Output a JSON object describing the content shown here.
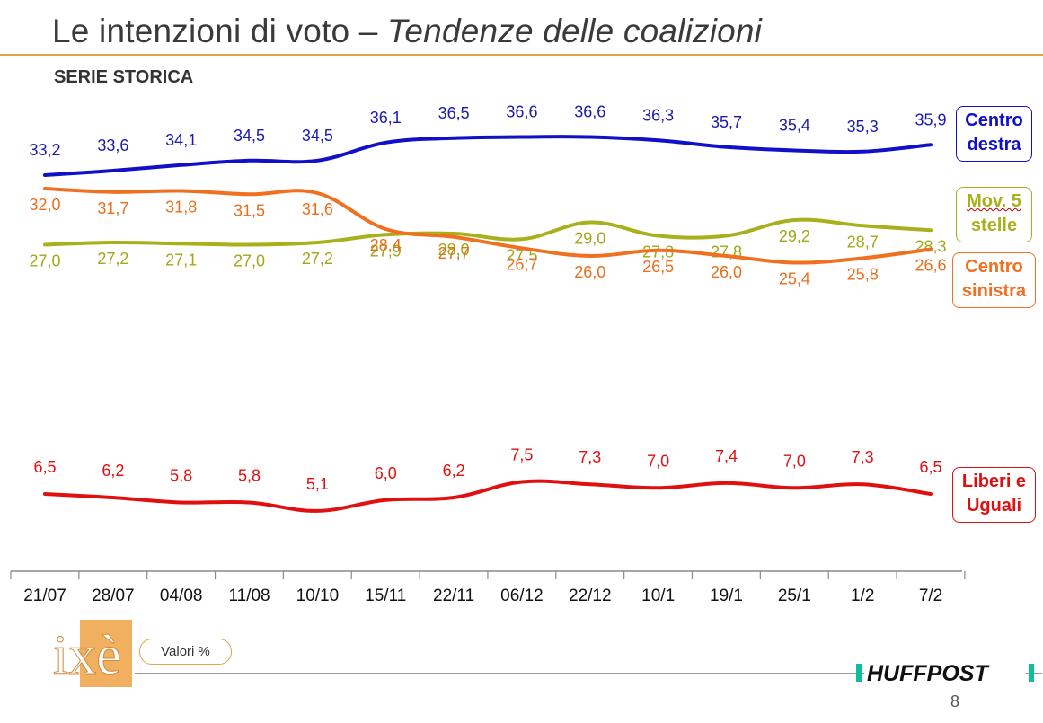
{
  "title": {
    "main": "Le intenzioni di voto – ",
    "italic": "Tendenze delle coalizioni"
  },
  "subtitle": "SERIE STORICA",
  "valori_label": "Valori %",
  "page_number": "8",
  "brand": {
    "ixe_logo": "ixè",
    "huffpost_logo": "HUFFPOST"
  },
  "legend": {
    "centro_destra": {
      "line1": "Centro",
      "line2": "destra",
      "color": "#1010c8"
    },
    "mov5": {
      "line1": "Mov. 5",
      "line2": "stelle",
      "color": "#a8b01c"
    },
    "centro_sinistra": {
      "line1": "Centro",
      "line2": "sinistra",
      "color": "#f07020"
    },
    "leu": {
      "line1": "Liberi e",
      "line2": "Uguali",
      "color": "#e01010"
    }
  },
  "chart_data": {
    "type": "line",
    "title": "Le intenzioni di voto – Tendenze delle coalizioni",
    "subtitle": "SERIE STORICA",
    "categories": [
      "21/07",
      "28/07",
      "04/08",
      "11/08",
      "10/10",
      "15/11",
      "22/11",
      "06/12",
      "22/12",
      "10/1",
      "19/1",
      "25/1",
      "1/2",
      "7/2"
    ],
    "series": [
      {
        "name": "Centro destra",
        "color": "#1010c8",
        "label_color": "#1a1ab0",
        "values": [
          33.2,
          33.6,
          34.1,
          34.5,
          34.5,
          36.1,
          36.5,
          36.6,
          36.6,
          36.3,
          35.7,
          35.4,
          35.3,
          35.9
        ],
        "labels": [
          "33,2",
          "33,6",
          "34,1",
          "34,5",
          "34,5",
          "36,1",
          "36,5",
          "36,6",
          "36,6",
          "36,3",
          "35,7",
          "35,4",
          "35,3",
          "35,9"
        ]
      },
      {
        "name": "Mov. 5 stelle",
        "color": "#a8b01c",
        "label_color": "#a0a818",
        "values": [
          27.0,
          27.2,
          27.1,
          27.0,
          27.2,
          27.9,
          28.0,
          27.5,
          29.0,
          27.8,
          27.8,
          29.2,
          28.7,
          28.3
        ],
        "labels": [
          "27,0",
          "27,2",
          "27,1",
          "27,0",
          "27,2",
          "27,9",
          "28,0",
          "27,5",
          "29,0",
          "27,8",
          "27,8",
          "29,2",
          "28,7",
          "28,3"
        ]
      },
      {
        "name": "Centro sinistra",
        "color": "#f07020",
        "label_color": "#e8701c",
        "values": [
          32.0,
          31.7,
          31.8,
          31.5,
          31.6,
          28.4,
          27.7,
          26.7,
          26.0,
          26.5,
          26.0,
          25.4,
          25.8,
          26.6
        ],
        "labels": [
          "32,0",
          "31,7",
          "31,8",
          "31,5",
          "31,6",
          "28,4",
          "27,7",
          "26,7",
          "26,0",
          "26,5",
          "26,0",
          "25,4",
          "25,8",
          "26,6"
        ]
      },
      {
        "name": "Liberi e Uguali",
        "color": "#e01010",
        "label_color": "#e01010",
        "values": [
          6.5,
          6.2,
          5.8,
          5.8,
          5.1,
          6.0,
          6.2,
          7.5,
          7.3,
          7.0,
          7.4,
          7.0,
          7.3,
          6.5
        ],
        "labels": [
          "6,5",
          "6,2",
          "5,8",
          "5,8",
          "5,1",
          "6,0",
          "6,2",
          "7,5",
          "7,3",
          "7,0",
          "7,4",
          "7,0",
          "7,3",
          "6,5"
        ]
      }
    ],
    "xlabel": "",
    "ylabel": "",
    "grid": false,
    "legend_position": "right"
  }
}
